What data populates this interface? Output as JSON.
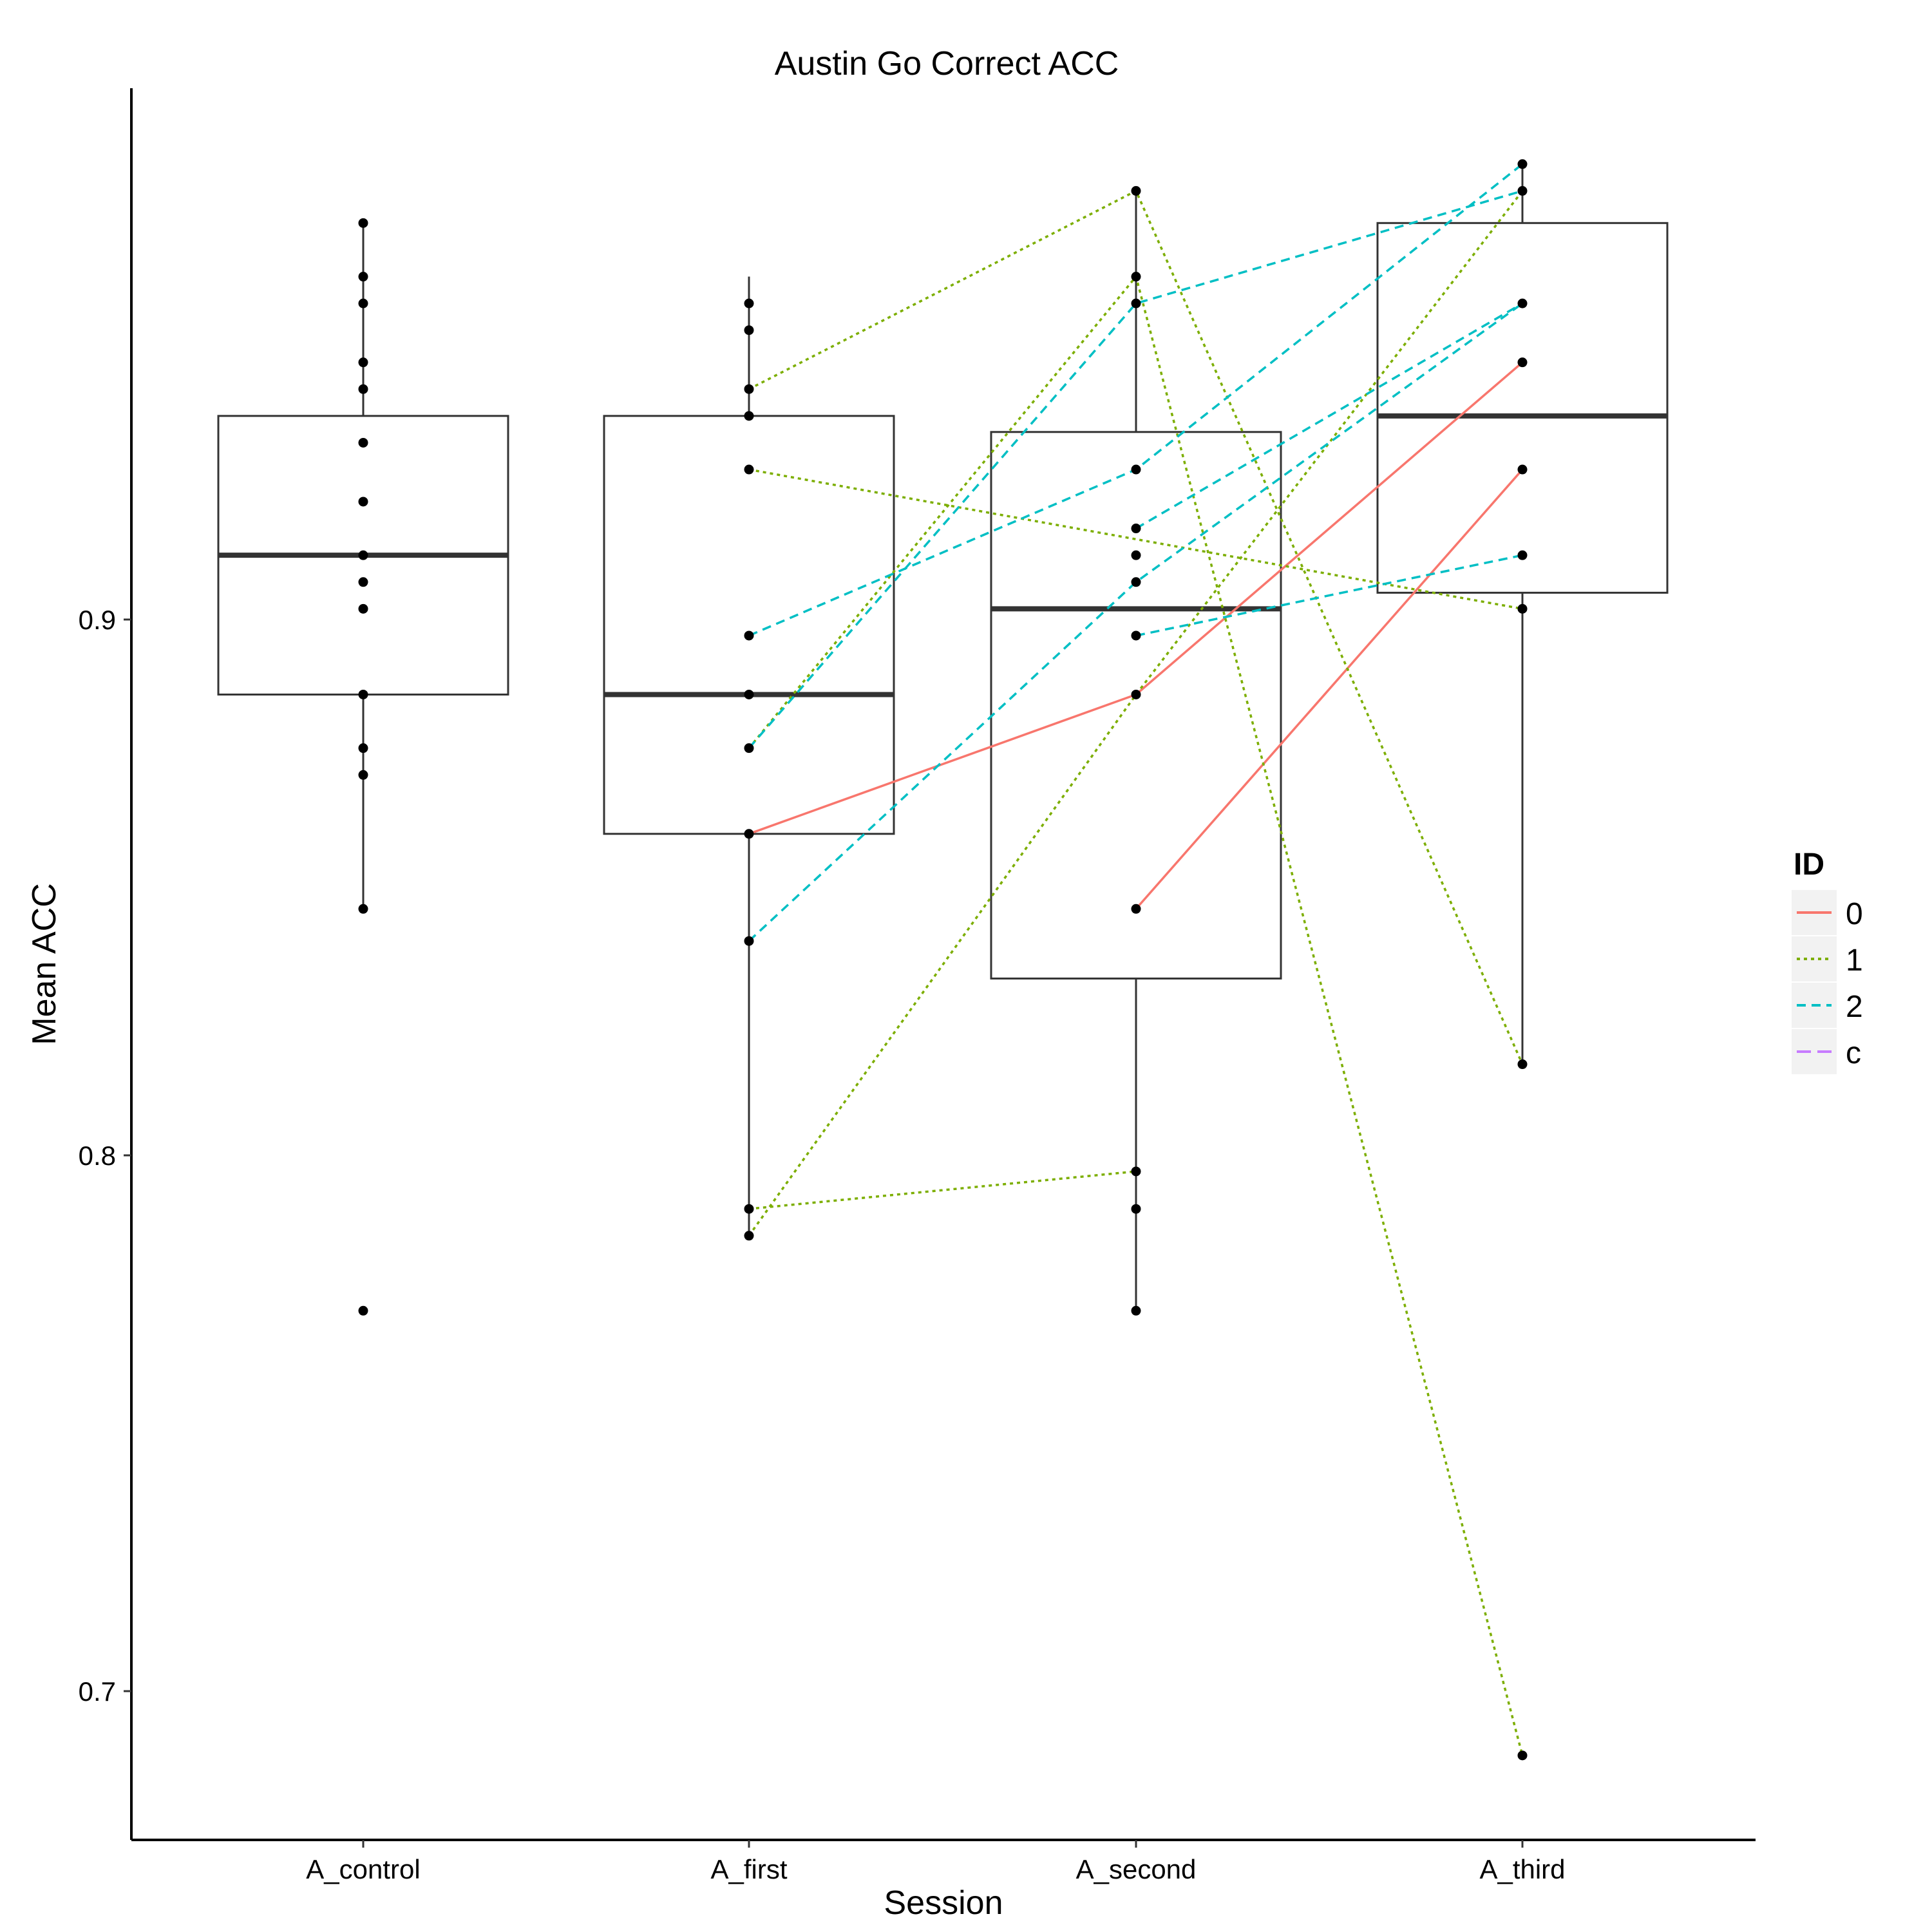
{
  "chart_data": {
    "type": "boxplot",
    "title": "Austin Go Correct ACC",
    "xlabel": "Session",
    "ylabel": "Mean ACC",
    "categories": [
      "A_control",
      "A_first",
      "A_second",
      "A_third"
    ],
    "ylim": [
      0.675,
      0.985
    ],
    "yticks": [
      0.7,
      0.8,
      0.9
    ],
    "ytick_labels": [
      "0.7",
      "0.8",
      "0.9"
    ],
    "grid": false,
    "boxes": [
      {
        "category": "A_control",
        "whisker_low": 0.846,
        "q1": 0.886,
        "median": 0.912,
        "q3": 0.938,
        "whisker_high": 0.974
      },
      {
        "category": "A_first",
        "whisker_low": 0.785,
        "q1": 0.86,
        "median": 0.886,
        "q3": 0.938,
        "whisker_high": 0.964
      },
      {
        "category": "A_second",
        "whisker_low": 0.771,
        "q1": 0.833,
        "median": 0.902,
        "q3": 0.935,
        "whisker_high": 0.98
      },
      {
        "category": "A_third",
        "whisker_low": 0.817,
        "q1": 0.905,
        "median": 0.938,
        "q3": 0.974,
        "whisker_high": 0.985
      }
    ],
    "points": [
      {
        "category": "A_control",
        "values": [
          0.974,
          0.964,
          0.959,
          0.948,
          0.943,
          0.933,
          0.922,
          0.912,
          0.907,
          0.902,
          0.886,
          0.876,
          0.871,
          0.846,
          0.771
        ]
      },
      {
        "category": "A_first",
        "values": [
          0.959,
          0.954,
          0.943,
          0.938,
          0.928,
          0.897,
          0.886,
          0.876,
          0.86,
          0.84,
          0.79,
          0.785
        ]
      },
      {
        "category": "A_second",
        "values": [
          0.98,
          0.964,
          0.959,
          0.928,
          0.917,
          0.912,
          0.907,
          0.897,
          0.886,
          0.846,
          0.797,
          0.79,
          0.771
        ]
      },
      {
        "category": "A_third",
        "values": [
          0.985,
          0.98,
          0.959,
          0.948,
          0.928,
          0.912,
          0.902,
          0.817,
          0.688
        ]
      }
    ],
    "legend": {
      "title": "ID",
      "position": "right",
      "entries": [
        {
          "label": "0",
          "color": "#F8766D",
          "dash": "solid"
        },
        {
          "label": "1",
          "color": "#7CAE00",
          "dash": "dotted"
        },
        {
          "label": "2",
          "color": "#00BFC4",
          "dash": "dashed"
        },
        {
          "label": "c",
          "color": "#C77CFF",
          "dash": "longdash"
        }
      ]
    },
    "series": [
      {
        "name": "0",
        "x": [
          "A_first",
          "A_second",
          "A_third"
        ],
        "y": [
          0.86,
          0.886,
          0.948
        ]
      },
      {
        "name": "0",
        "x": [
          "A_second",
          "A_third"
        ],
        "y": [
          0.846,
          0.928
        ]
      },
      {
        "name": "1",
        "x": [
          "A_first",
          "A_second",
          "A_third"
        ],
        "y": [
          0.943,
          0.98,
          0.817
        ]
      },
      {
        "name": "1",
        "x": [
          "A_first",
          "A_third"
        ],
        "y": [
          0.928,
          0.902
        ]
      },
      {
        "name": "1",
        "x": [
          "A_first",
          "A_second",
          "A_third"
        ],
        "y": [
          0.876,
          0.964,
          0.688
        ]
      },
      {
        "name": "1",
        "x": [
          "A_first",
          "A_second",
          "A_third"
        ],
        "y": [
          0.785,
          0.886,
          0.98
        ]
      },
      {
        "name": "1",
        "x": [
          "A_first",
          "A_second"
        ],
        "y": [
          0.79,
          0.797
        ]
      },
      {
        "name": "2",
        "x": [
          "A_first",
          "A_second",
          "A_third"
        ],
        "y": [
          0.876,
          0.959,
          0.98
        ]
      },
      {
        "name": "2",
        "x": [
          "A_first",
          "A_second",
          "A_third"
        ],
        "y": [
          0.897,
          0.928,
          0.985
        ]
      },
      {
        "name": "2",
        "x": [
          "A_first",
          "A_second",
          "A_third"
        ],
        "y": [
          0.84,
          0.907,
          0.959
        ]
      },
      {
        "name": "2",
        "x": [
          "A_second",
          "A_third"
        ],
        "y": [
          0.917,
          0.959
        ]
      },
      {
        "name": "2",
        "x": [
          "A_second",
          "A_third"
        ],
        "y": [
          0.897,
          0.912
        ]
      }
    ]
  }
}
